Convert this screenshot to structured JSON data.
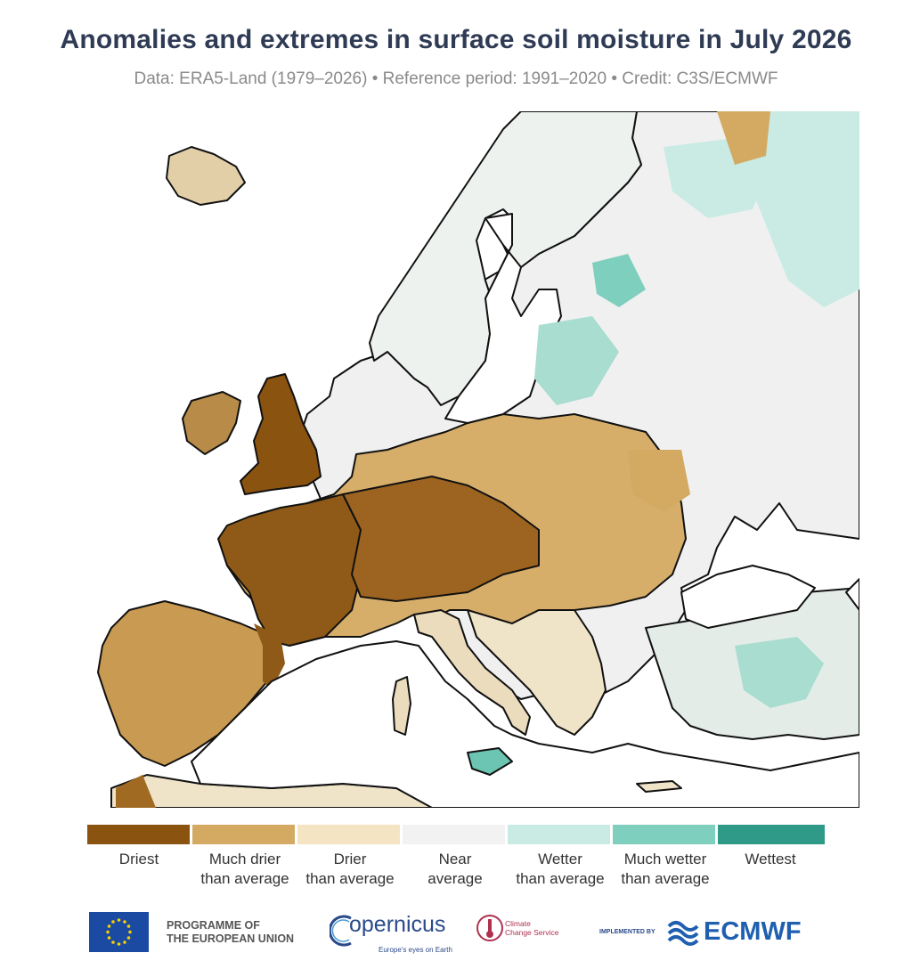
{
  "header": {
    "title": "Anomalies and extremes in surface soil moisture in July 2026",
    "subtitle": "Data: ERA5-Land (1979–2026) • Reference period: 1991–2020 • Credit: C3S/ECMWF"
  },
  "legend": {
    "items": [
      {
        "line1": "Driest",
        "line2": "",
        "color": "#8b5310"
      },
      {
        "line1": "Much drier",
        "line2": "than average",
        "color": "#d4aa63"
      },
      {
        "line1": "Drier",
        "line2": "than average",
        "color": "#f4e4c3"
      },
      {
        "line1": "Near",
        "line2": "average",
        "color": "#f2f2f2"
      },
      {
        "line1": "Wetter",
        "line2": "than average",
        "color": "#c9ebe3"
      },
      {
        "line1": "Much wetter",
        "line2": "than average",
        "color": "#7fcfbf"
      },
      {
        "line1": "Wettest",
        "line2": "",
        "color": "#2f9a88"
      }
    ]
  },
  "footer": {
    "eu_line1": "PROGRAMME OF",
    "eu_line2": "THE EUROPEAN UNION",
    "copernicus": "opernicus",
    "copernicus_sub": "Europe's eyes on Earth",
    "c3s_line1": "Climate",
    "c3s_line2": "Change Service",
    "implemented_by": "IMPLEMENTED BY",
    "ecmwf": "ECMWF"
  },
  "colors": {
    "title": "#2f3b55",
    "subtitle": "#8a8a8a",
    "sea": "#ffffff",
    "coast": "#111111"
  }
}
